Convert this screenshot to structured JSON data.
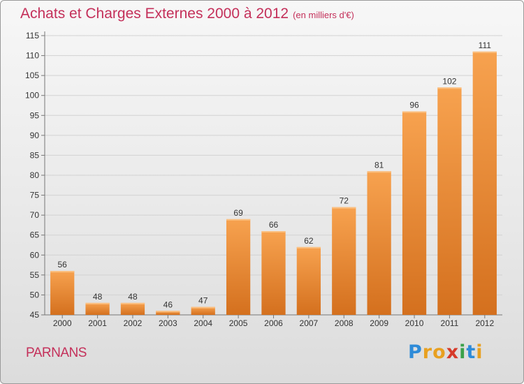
{
  "chart_data": {
    "type": "bar",
    "title": "Achats et Charges Externes 2000 à 2012",
    "subtitle": "(en milliers d'€)",
    "categories": [
      "2000",
      "2001",
      "2002",
      "2003",
      "2004",
      "2005",
      "2006",
      "2007",
      "2008",
      "2009",
      "2010",
      "2011",
      "2012"
    ],
    "values": [
      56,
      48,
      48,
      46,
      47,
      69,
      66,
      62,
      72,
      81,
      96,
      102,
      111
    ],
    "ylim": [
      45,
      115
    ],
    "yticks": [
      45,
      50,
      55,
      60,
      65,
      70,
      75,
      80,
      85,
      90,
      95,
      100,
      105,
      110,
      115
    ],
    "grid": true,
    "colors": {
      "bar_light": "#f7a24f",
      "bar_dark": "#d4701e",
      "title": "#c4305a"
    }
  },
  "footer": {
    "place": "PARNANS",
    "logo": {
      "letters": [
        "P",
        "r",
        "o",
        "x",
        "i",
        "t",
        "i"
      ],
      "colors": [
        "#2e8bd8",
        "#e8a020",
        "#e8a020",
        "#d63a2a",
        "#3aa04a",
        "#2e8bd8",
        "#e8a020"
      ]
    }
  }
}
